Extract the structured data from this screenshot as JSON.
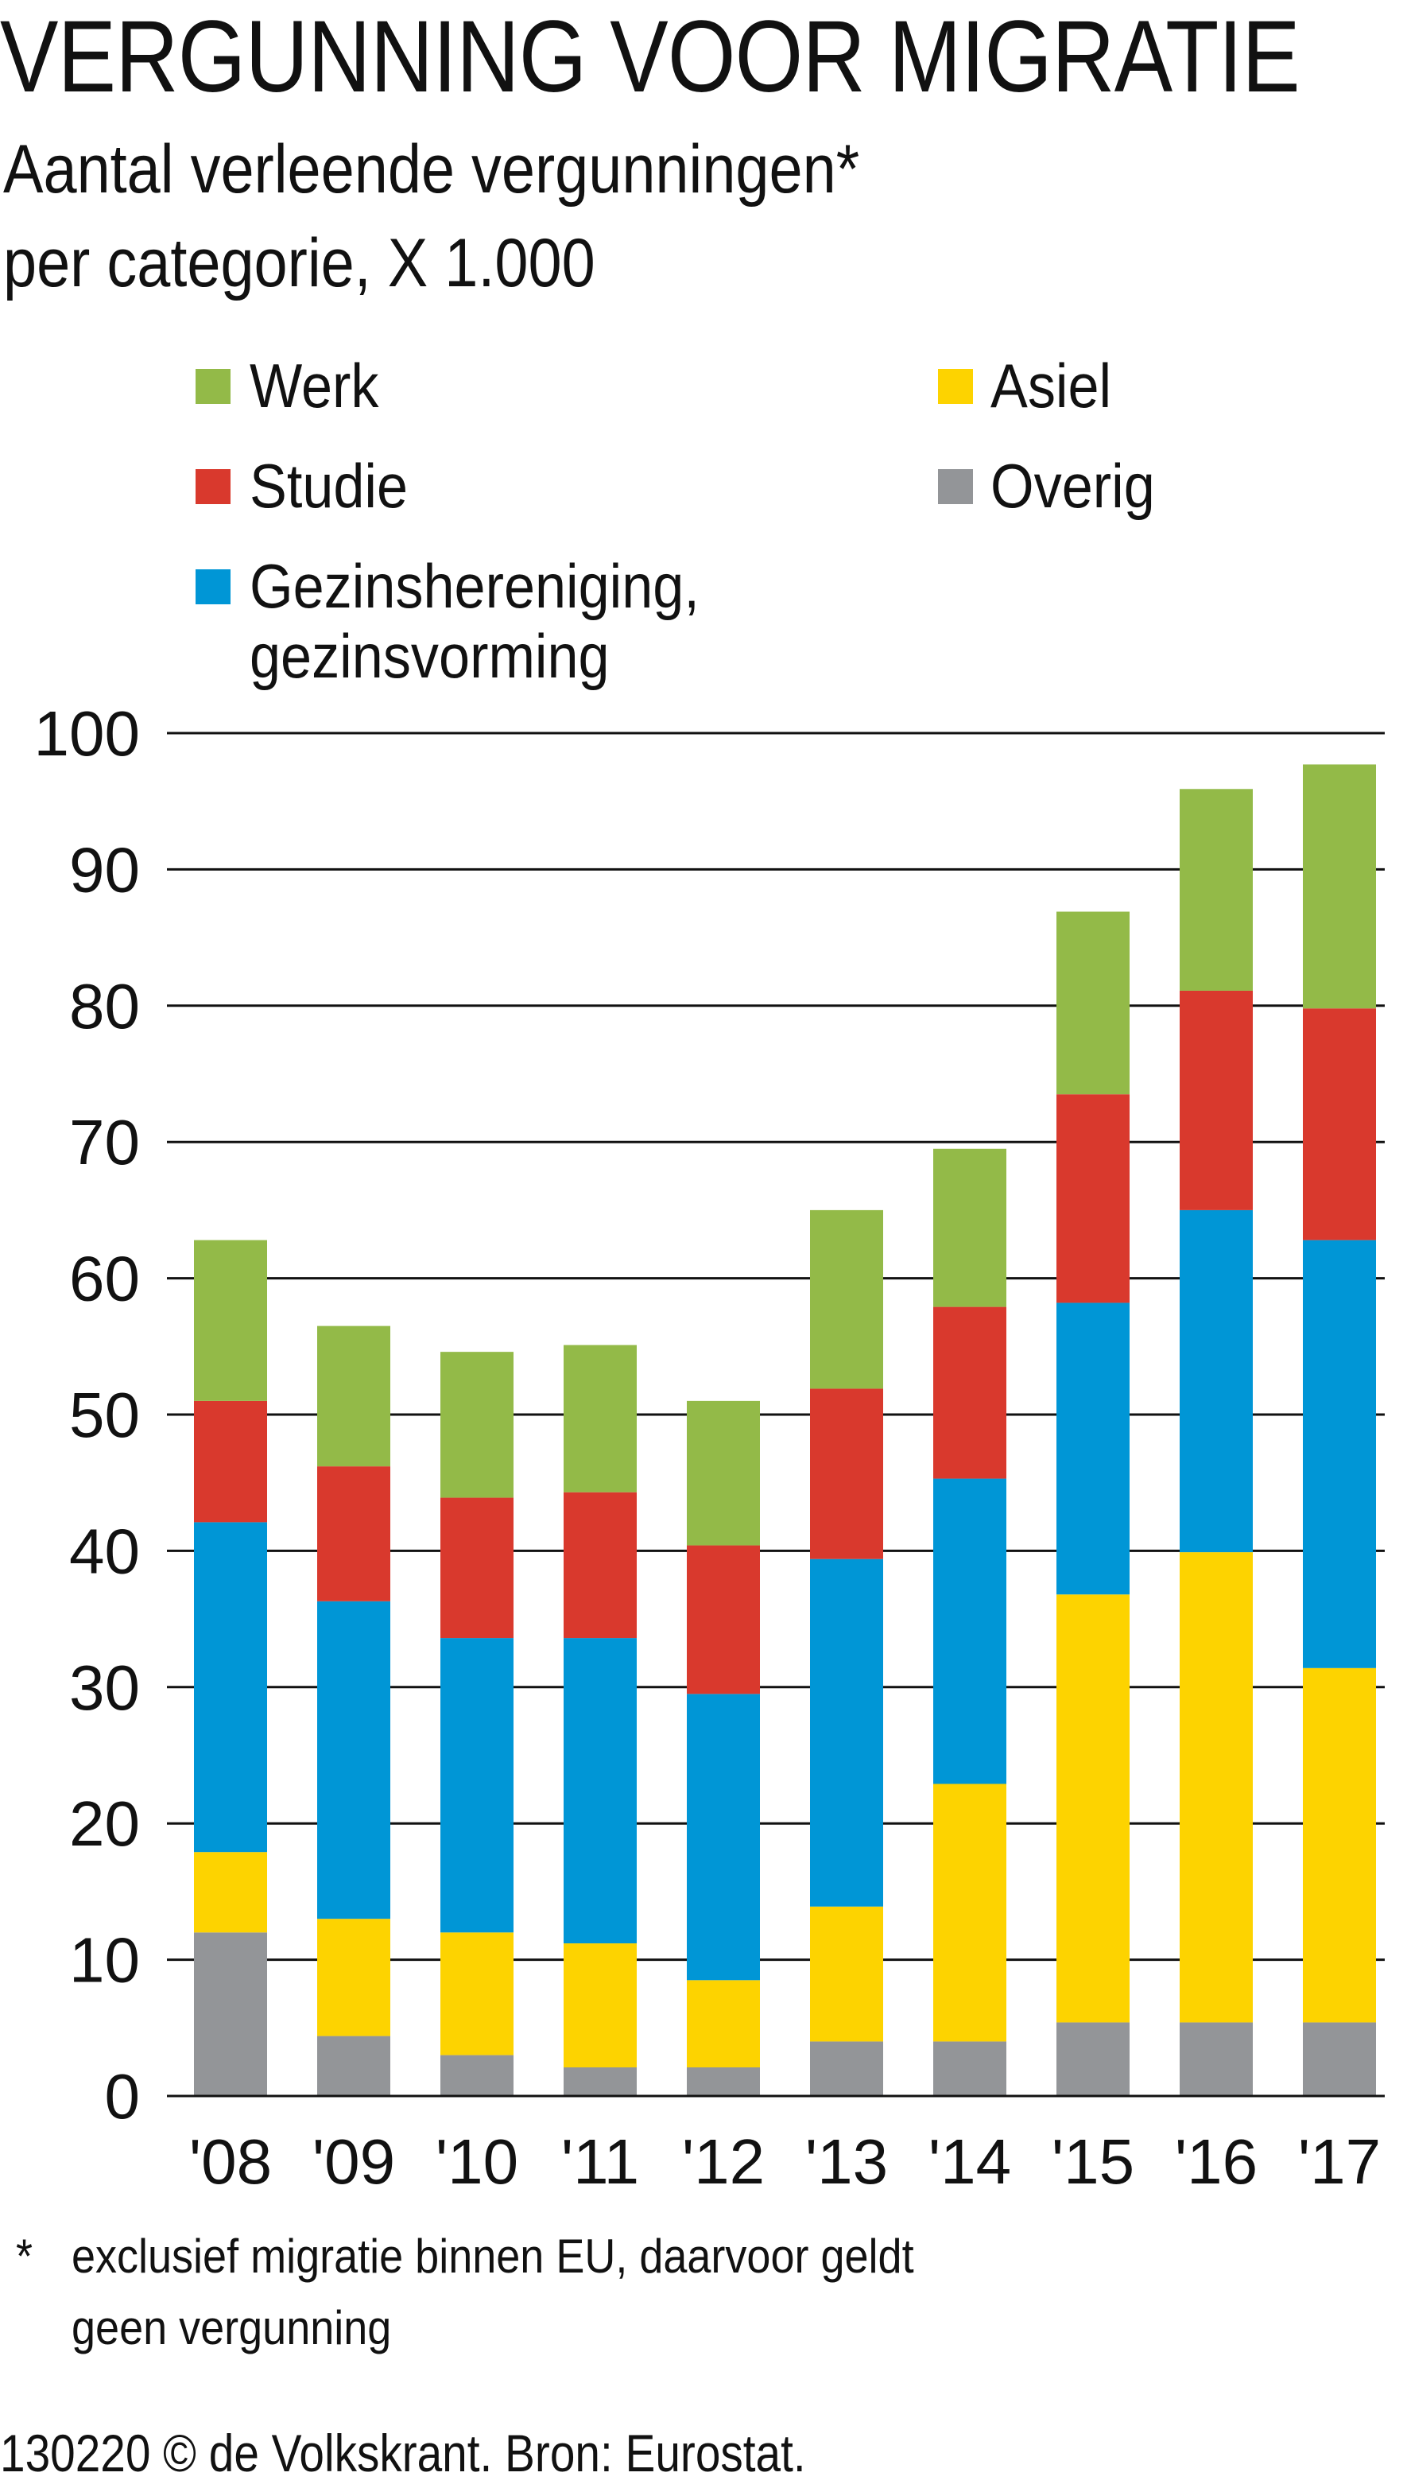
{
  "title": "VERGUNNING VOOR MIGRATIE",
  "subtitle_lines": [
    "Aantal verleende vergunningen*",
    "per categorie, X 1.000"
  ],
  "footnote_mark": "*",
  "footnote_lines": [
    "exclusief migratie binnen EU, daarvoor geldt",
    "geen vergunning"
  ],
  "source": "130220 © de Volkskrant. Bron: Eurostat.",
  "chart_data": {
    "type": "bar",
    "stacked": true,
    "categories": [
      "'08",
      "'09",
      "'10",
      "'11",
      "'12",
      "'13",
      "'14",
      "'15",
      "'16",
      "'17"
    ],
    "ylim": [
      0,
      100
    ],
    "yticks": [
      0,
      10,
      20,
      30,
      40,
      50,
      60,
      70,
      80,
      90,
      100
    ],
    "grid": true,
    "legend": [
      {
        "name": "Werk",
        "color": "#93ba48"
      },
      {
        "name": "Studie",
        "color": "#d9392d"
      },
      {
        "name": "Gezinshereniging,\ngezinsvorming",
        "lines": [
          "Gezinshereniging,",
          "gezinsvorming"
        ],
        "color": "#0096d6"
      },
      {
        "name": "Asiel",
        "color": "#fdd300"
      },
      {
        "name": "Overig",
        "color": "#939598"
      }
    ],
    "series": [
      {
        "name": "Overig",
        "color": "#939598",
        "values": [
          12.0,
          4.4,
          3.0,
          2.1,
          2.1,
          4.0,
          4.0,
          5.4,
          5.4,
          5.4
        ]
      },
      {
        "name": "Asiel",
        "color": "#fdd300",
        "values": [
          5.9,
          8.6,
          9.0,
          9.1,
          6.4,
          9.9,
          18.9,
          31.4,
          34.5,
          26.0
        ]
      },
      {
        "name": "Gezinshereniging, gezinsvorming",
        "color": "#0096d6",
        "values": [
          24.2,
          23.3,
          21.6,
          22.4,
          21.0,
          25.5,
          22.4,
          21.4,
          25.1,
          31.4
        ]
      },
      {
        "name": "Studie",
        "color": "#d9392d",
        "values": [
          8.9,
          9.9,
          10.3,
          10.7,
          10.9,
          12.5,
          12.6,
          15.3,
          16.1,
          17.0
        ]
      },
      {
        "name": "Werk",
        "color": "#93ba48",
        "values": [
          11.8,
          10.3,
          10.7,
          10.8,
          10.6,
          13.1,
          11.6,
          13.4,
          14.8,
          17.9
        ]
      }
    ]
  }
}
